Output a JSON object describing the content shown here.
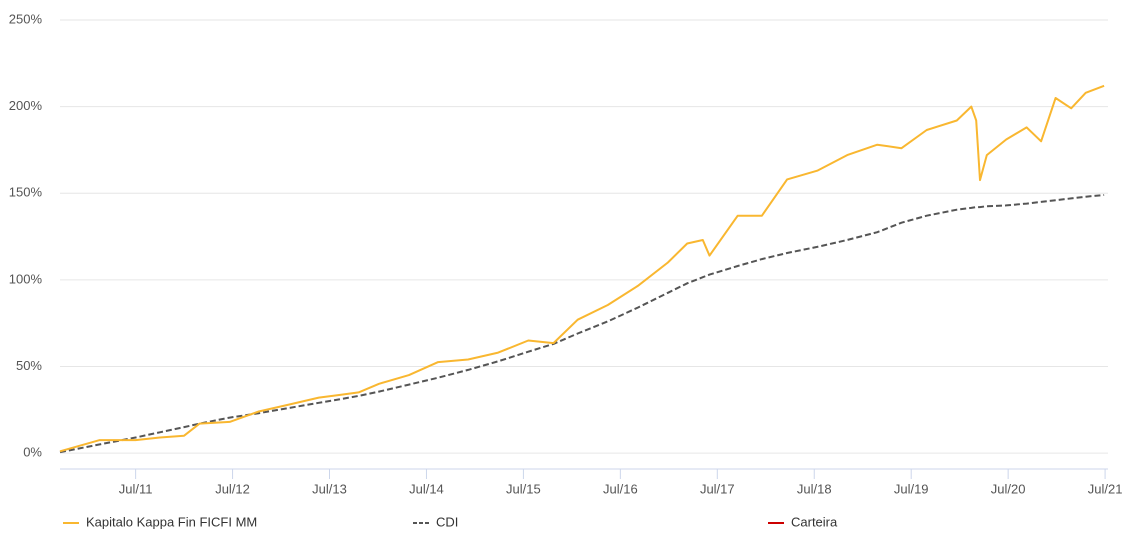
{
  "chart_data": {
    "type": "line",
    "x": [
      2010.72,
      2011.13,
      2011.5,
      2011.75,
      2012.0,
      2012.16,
      2012.47,
      2012.77,
      2013.08,
      2013.39,
      2013.6,
      2013.8,
      2014.01,
      2014.32,
      2014.62,
      2014.93,
      2015.24,
      2015.55,
      2015.81,
      2016.06,
      2016.37,
      2016.68,
      2016.99,
      2017.19,
      2017.35,
      2017.42,
      2017.71,
      2017.96,
      2018.22,
      2018.53,
      2018.84,
      2019.15,
      2019.4,
      2019.66,
      2019.97,
      2020.12,
      2020.17,
      2020.21,
      2020.28,
      2020.48,
      2020.69,
      2020.84,
      2020.99,
      2021.15,
      2021.3,
      2021.49
    ],
    "series": [
      {
        "name": "Kapitalo Kappa Fin FICFI MM",
        "color": "#f9b730",
        "values": [
          1,
          7.5,
          7.5,
          9,
          10,
          17,
          18,
          24,
          28,
          32,
          33.5,
          35,
          40,
          45,
          52.5,
          54,
          58,
          65,
          63.5,
          77,
          85.5,
          96.5,
          110,
          121,
          123,
          114,
          137,
          137,
          158,
          163,
          172,
          178,
          176,
          186.5,
          192,
          200,
          192,
          157.6,
          172,
          181,
          188,
          180,
          205,
          199,
          208,
          212
        ]
      },
      {
        "name": "CDI",
        "color": "#555555",
        "dashed": true,
        "values": [
          0.5,
          5,
          9,
          12,
          15,
          17,
          20.5,
          23,
          26,
          29,
          31,
          33,
          35.5,
          39.5,
          43.5,
          48,
          53,
          58.5,
          63,
          69,
          76,
          84,
          92.5,
          98,
          101.5,
          103,
          108,
          112,
          115.5,
          119,
          123,
          127.5,
          133,
          137,
          140.5,
          141.5,
          142,
          142,
          142.5,
          143,
          144,
          145,
          146,
          147,
          148,
          149
        ]
      },
      {
        "name": "Carteira",
        "color": "#cc0000",
        "values": [
          null,
          null,
          null,
          null,
          null,
          null,
          null,
          null,
          null,
          null,
          null,
          null,
          null,
          null,
          null,
          null,
          null,
          null,
          null,
          null,
          null,
          null,
          null,
          null,
          null,
          null,
          null,
          null,
          null,
          null,
          null,
          null,
          null,
          null,
          null,
          null,
          null,
          null,
          null,
          null,
          null,
          null,
          null,
          null,
          null,
          null
        ]
      }
    ],
    "xlim": [
      2010.72,
      2021.53
    ],
    "xticks": [
      {
        "value": 2011.5,
        "label": "Jul/11"
      },
      {
        "value": 2012.5,
        "label": "Jul/12"
      },
      {
        "value": 2013.5,
        "label": "Jul/13"
      },
      {
        "value": 2014.5,
        "label": "Jul/14"
      },
      {
        "value": 2015.5,
        "label": "Jul/15"
      },
      {
        "value": 2016.5,
        "label": "Jul/16"
      },
      {
        "value": 2017.5,
        "label": "Jul/17"
      },
      {
        "value": 2018.5,
        "label": "Jul/18"
      },
      {
        "value": 2019.5,
        "label": "Jul/19"
      },
      {
        "value": 2020.5,
        "label": "Jul/20"
      },
      {
        "value": 2021.5,
        "label": "Jul/21"
      }
    ],
    "ylim": [
      -9.2,
      250
    ],
    "yticks": [
      {
        "value": 0,
        "label": "0%"
      },
      {
        "value": 50,
        "label": "50%"
      },
      {
        "value": 100,
        "label": "100%"
      },
      {
        "value": 150,
        "label": "150%"
      },
      {
        "value": 200,
        "label": "200%"
      },
      {
        "value": 250,
        "label": "250%"
      }
    ],
    "grid": true,
    "legend": "bottom"
  }
}
